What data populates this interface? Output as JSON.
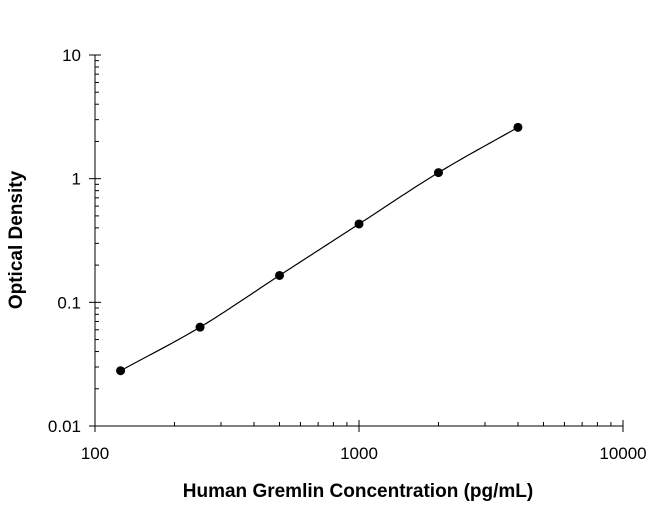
{
  "chart_data": {
    "type": "scatter",
    "title": "",
    "xlabel": "Human Gremlin Concentration (pg/mL)",
    "ylabel": "Optical Density",
    "x_scale": "log",
    "y_scale": "log",
    "xlim": [
      100,
      10000
    ],
    "ylim": [
      0.01,
      10
    ],
    "x_ticks": [
      {
        "value": 100,
        "label": "100"
      },
      {
        "value": 1000,
        "label": "1000"
      },
      {
        "value": 10000,
        "label": "10000"
      }
    ],
    "y_ticks": [
      {
        "value": 0.01,
        "label": "0.01"
      },
      {
        "value": 0.1,
        "label": "0.1"
      },
      {
        "value": 1,
        "label": "1"
      },
      {
        "value": 10,
        "label": "10"
      }
    ],
    "grid": false,
    "legend": "none",
    "series": [
      {
        "x": [
          125,
          250,
          500,
          1000,
          2000,
          4000
        ],
        "y": [
          0.028,
          0.063,
          0.165,
          0.43,
          1.12,
          2.6
        ],
        "color": "#000000",
        "fit_curve": true
      }
    ]
  }
}
